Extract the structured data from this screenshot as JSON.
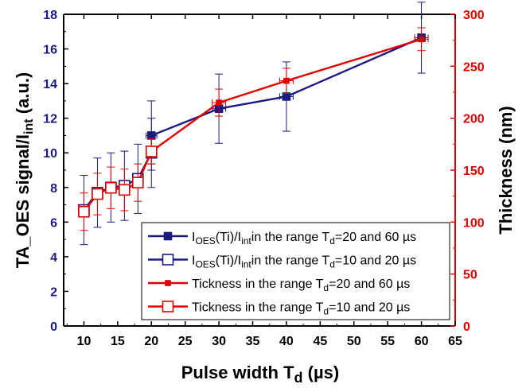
{
  "chart_data": {
    "type": "line",
    "xlabel": {
      "main": "Pulse width T",
      "sub": "d",
      "post": " (µs)"
    },
    "ylabel_left": {
      "main": "TA_OES signal/I",
      "sub": "int",
      "post": " (a.u.)"
    },
    "ylabel_right": "Thickness (nm)",
    "xlim": [
      7,
      65
    ],
    "ylim_left": [
      0,
      18
    ],
    "ylim_right": [
      0,
      300
    ],
    "x_ticks": [
      10,
      15,
      20,
      25,
      30,
      35,
      40,
      45,
      50,
      55,
      60,
      65
    ],
    "y_left_ticks": [
      0,
      2,
      4,
      6,
      8,
      10,
      12,
      14,
      16,
      18
    ],
    "y_right_ticks": [
      0,
      50,
      100,
      150,
      200,
      250,
      300
    ],
    "colors": {
      "navy": "#1a1a80",
      "red": "#e00000",
      "frame": "#e00000"
    },
    "series": [
      {
        "name": "I(OES)(Ti)/I(int) in the range Td=20 and 60 µs",
        "legend": [
          {
            "t": "I",
            "s": ""
          },
          {
            "t": "OES",
            "s": "sub"
          },
          {
            "t": "(Ti)/I",
            "s": ""
          },
          {
            "t": "int",
            "s": "sub"
          },
          {
            "t": "in the range T",
            "s": ""
          },
          {
            "t": "d",
            "s": "sub"
          },
          {
            "t": "=20 and 60 µs",
            "s": ""
          }
        ],
        "axis": "left",
        "color": "#1a1a80",
        "marker": "filled-square",
        "x": [
          20,
          30,
          40,
          60
        ],
        "y": [
          11.0,
          12.55,
          13.25,
          16.65
        ],
        "yerr": [
          2.0,
          2.0,
          2.0,
          2.05
        ],
        "xerr": [
          0.8,
          1.0,
          1.0,
          1.0
        ]
      },
      {
        "name": "I(OES)(Ti)/I(int) in the range Td=10 and 20 µs",
        "legend": [
          {
            "t": "I",
            "s": ""
          },
          {
            "t": "OES",
            "s": "sub"
          },
          {
            "t": "(Ti)/I",
            "s": ""
          },
          {
            "t": "int",
            "s": "sub"
          },
          {
            "t": "in the range T",
            "s": ""
          },
          {
            "t": "d",
            "s": "sub"
          },
          {
            "t": "=10 and 20 µs",
            "s": ""
          }
        ],
        "axis": "left",
        "color": "#1a1a80",
        "marker": "open-square",
        "x": [
          10,
          12,
          14,
          16,
          18,
          20
        ],
        "y": [
          6.7,
          7.7,
          8.0,
          8.1,
          8.5,
          10.0
        ],
        "yerr": [
          2.0,
          2.0,
          2.0,
          2.0,
          2.0,
          2.0
        ],
        "xerr": [
          0.5,
          0.5,
          0.5,
          0.5,
          0.5,
          0.5
        ]
      },
      {
        "name": "Tickness in the range Td=20 and 60 µs",
        "legend": [
          {
            "t": "Tickness in the range T",
            "s": ""
          },
          {
            "t": "d",
            "s": "sub"
          },
          {
            "t": "=20 and 60 µs",
            "s": ""
          }
        ],
        "axis": "right",
        "color": "#e00000",
        "marker": "filled-square-small",
        "x": [
          20,
          30,
          40,
          60
        ],
        "y": [
          168,
          215,
          236,
          276
        ],
        "yerr": [
          12,
          13,
          12,
          11
        ],
        "xerr": [
          0.8,
          1.0,
          1.0,
          1.0
        ]
      },
      {
        "name": "Tickness in the range Td=10 and 20 µs",
        "legend": [
          {
            "t": "Tickness in the range T",
            "s": ""
          },
          {
            "t": "d",
            "s": "sub"
          },
          {
            "t": "=10 and 20 µs",
            "s": ""
          }
        ],
        "axis": "right",
        "color": "#e00000",
        "marker": "open-square",
        "x": [
          10,
          12,
          14,
          16,
          18,
          20
        ],
        "y": [
          110,
          127,
          133,
          131,
          138,
          168
        ],
        "yerr": [
          18,
          20,
          20,
          20,
          18,
          12
        ],
        "xerr": [
          0.5,
          0.5,
          0.5,
          0.5,
          0.5,
          0.5
        ]
      }
    ],
    "legend_position": "bottom-right"
  }
}
